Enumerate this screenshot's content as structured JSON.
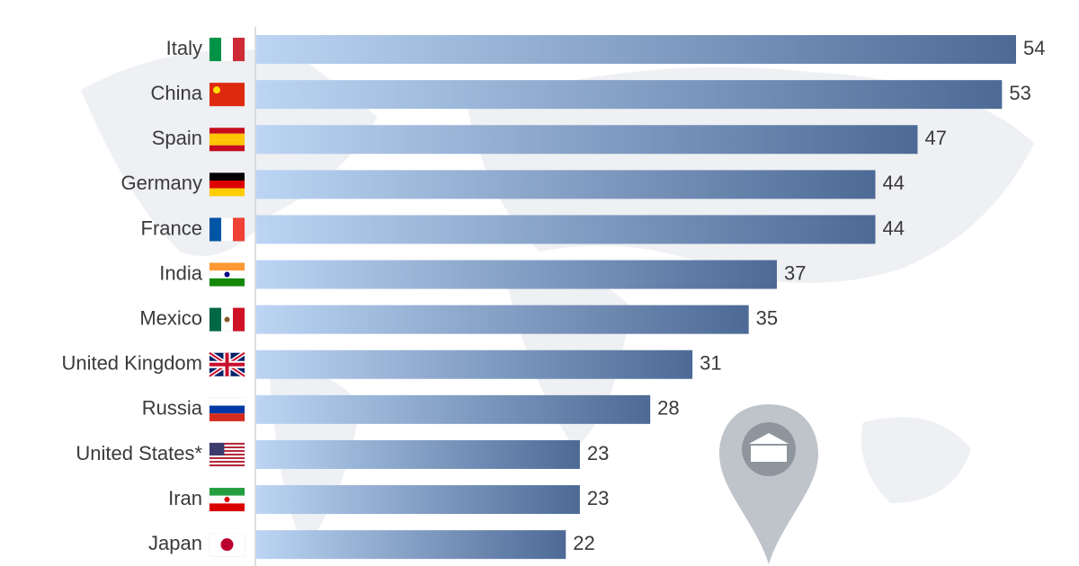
{
  "chart_data": {
    "type": "hbar",
    "categories": [
      "Italy",
      "China",
      "Spain",
      "Germany",
      "France",
      "India",
      "Mexico",
      "United Kingdom",
      "Russia",
      "United States*",
      "Iran",
      "Japan"
    ],
    "values": [
      54,
      53,
      47,
      44,
      44,
      37,
      35,
      31,
      28,
      23,
      23,
      22
    ],
    "xlim": [
      0,
      54
    ],
    "gradient": [
      "#bcd5f4",
      "#4d6a96"
    ]
  }
}
